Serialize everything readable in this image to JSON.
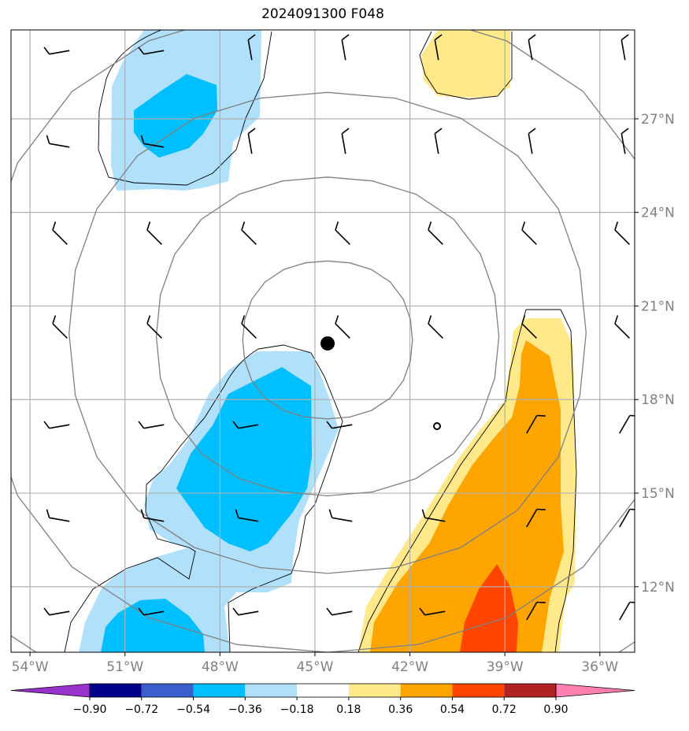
{
  "chart_data": {
    "type": "heatmap",
    "title": "2024091300 F048",
    "x_ticks": [
      "54°W",
      "51°W",
      "48°W",
      "45°W",
      "42°W",
      "39°W",
      "36°W"
    ],
    "y_ticks": [
      "27°N",
      "24°N",
      "21°N",
      "18°N",
      "15°N",
      "12°N"
    ],
    "x_tick_values": [
      -54,
      -51,
      -48,
      -45,
      -42,
      -39,
      -36
    ],
    "y_tick_values": [
      27,
      24,
      21,
      18,
      15,
      12
    ],
    "xlim": [
      -54.6,
      -34.9
    ],
    "ylim": [
      9.9,
      29.85
    ],
    "grid": true,
    "colorbar": {
      "orientation": "horizontal",
      "extend": "both",
      "levels": [
        -0.9,
        -0.72,
        -0.54,
        -0.36,
        -0.18,
        0.18,
        0.36,
        0.54,
        0.72,
        0.9
      ],
      "tick_labels": [
        "−0.90",
        "−0.72",
        "−0.54",
        "−0.36",
        "−0.18",
        "0.18",
        "0.36",
        "0.54",
        "0.72",
        "0.90"
      ],
      "colors": [
        "#9932cc",
        "#00008b",
        "#3a5fcd",
        "#00bfff",
        "#b0e0fa",
        "#ffffff",
        "#ffe98a",
        "#ffa500",
        "#ff4500",
        "#b22222",
        "#ff80b0"
      ]
    },
    "center_marker": {
      "lon": -44.6,
      "lat": 19.8
    },
    "range_rings": {
      "center_lon": -44.6,
      "center_lat": 19.8,
      "count": 5
    },
    "wind_barbs_present": true
  }
}
